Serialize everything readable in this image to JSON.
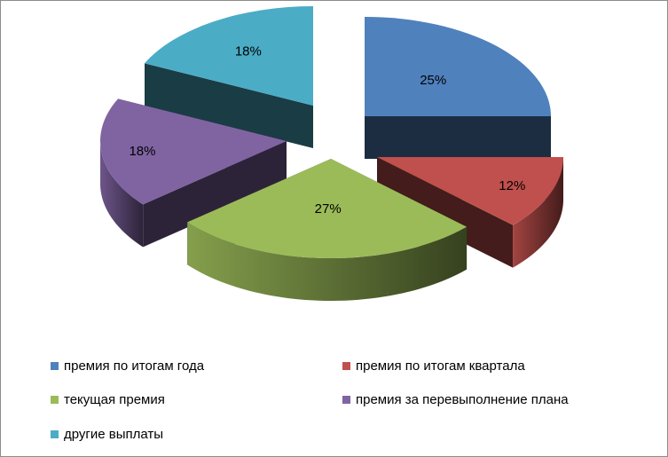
{
  "chart_data": {
    "type": "pie",
    "style": "exploded-3d",
    "slices": [
      {
        "label": "премия по итогам года",
        "value": 25,
        "display": "25%",
        "color": "#4F81BD"
      },
      {
        "label": "премия по итогам квартала",
        "value": 12,
        "display": "12%",
        "color": "#C0504D"
      },
      {
        "label": "текущая премия",
        "value": 27,
        "display": "27%",
        "color": "#9BBB59"
      },
      {
        "label": "премия за перевыполнение плана",
        "value": 18,
        "display": "18%",
        "color": "#8064A2"
      },
      {
        "label": "другие выплаты",
        "value": 18,
        "display": "18%",
        "color": "#4BACC6"
      }
    ],
    "legend_placement": "bottom"
  }
}
